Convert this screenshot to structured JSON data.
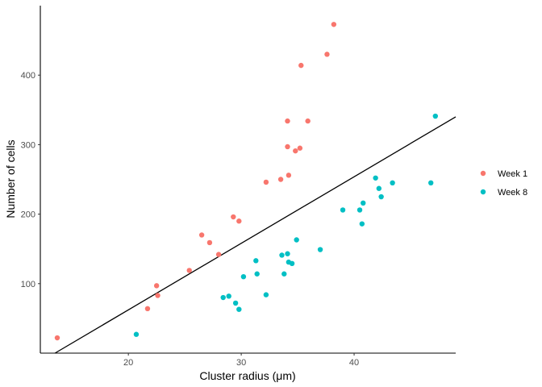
{
  "chart_data": {
    "type": "scatter",
    "xlabel": "Cluster radius (μm)",
    "ylabel": "Number of cells",
    "xlim": [
      12.2,
      49.0
    ],
    "ylim": [
      0,
      500
    ],
    "xticks": [
      20,
      30,
      40
    ],
    "yticks": [
      100,
      200,
      300,
      400
    ],
    "grid": false,
    "legend_position": "right",
    "series": [
      {
        "name": "Week 1",
        "color": "#f8766d",
        "points": [
          [
            13.7,
            22
          ],
          [
            21.7,
            64
          ],
          [
            22.5,
            97
          ],
          [
            22.6,
            83
          ],
          [
            25.4,
            119
          ],
          [
            26.5,
            170
          ],
          [
            27.2,
            159
          ],
          [
            28.0,
            142
          ],
          [
            29.3,
            196
          ],
          [
            29.8,
            190
          ],
          [
            32.2,
            246
          ],
          [
            33.5,
            250
          ],
          [
            34.1,
            334
          ],
          [
            34.1,
            297
          ],
          [
            34.2,
            256
          ],
          [
            34.8,
            291
          ],
          [
            35.2,
            295
          ],
          [
            35.3,
            414
          ],
          [
            35.9,
            334
          ],
          [
            37.6,
            430
          ],
          [
            38.2,
            473
          ]
        ]
      },
      {
        "name": "Week 8",
        "color": "#00bfc4",
        "points": [
          [
            20.7,
            27
          ],
          [
            28.4,
            80
          ],
          [
            28.9,
            82
          ],
          [
            29.5,
            72
          ],
          [
            29.8,
            63
          ],
          [
            30.2,
            110
          ],
          [
            31.3,
            133
          ],
          [
            31.4,
            114
          ],
          [
            32.2,
            84
          ],
          [
            33.6,
            141
          ],
          [
            33.8,
            114
          ],
          [
            34.1,
            143
          ],
          [
            34.2,
            131
          ],
          [
            34.5,
            129
          ],
          [
            34.9,
            163
          ],
          [
            37.0,
            149
          ],
          [
            39.0,
            206
          ],
          [
            40.5,
            206
          ],
          [
            40.7,
            186
          ],
          [
            40.8,
            216
          ],
          [
            41.9,
            252
          ],
          [
            42.2,
            237
          ],
          [
            42.4,
            225
          ],
          [
            43.4,
            245
          ],
          [
            46.8,
            245
          ],
          [
            47.2,
            341
          ]
        ]
      }
    ],
    "fit_line": {
      "x": [
        13.5,
        49.0
      ],
      "y": [
        0,
        340
      ]
    }
  }
}
